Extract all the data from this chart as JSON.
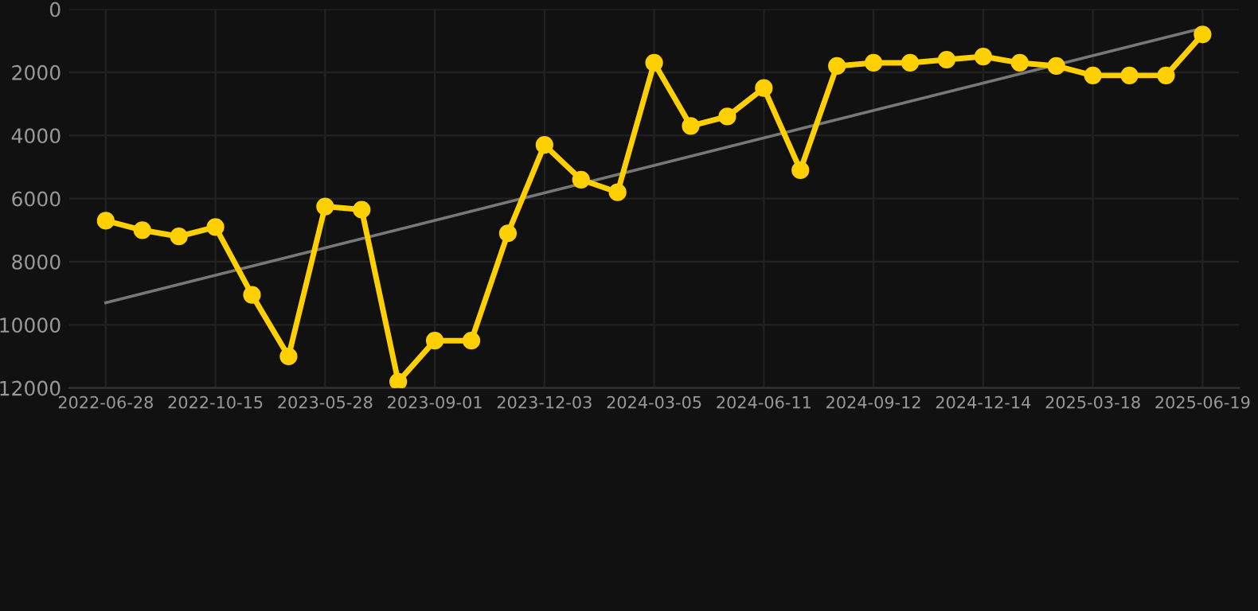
{
  "chart_data": {
    "type": "line",
    "categories": [
      "2022-06-28",
      null,
      null,
      "2022-10-15",
      null,
      null,
      "2023-05-28",
      null,
      null,
      "2023-09-01",
      null,
      null,
      "2023-12-03",
      null,
      null,
      "2024-03-05",
      null,
      null,
      "2024-06-11",
      null,
      null,
      "2024-09-12",
      null,
      null,
      "2024-12-14",
      null,
      null,
      "2025-03-18",
      null,
      null,
      "2025-06-19"
    ],
    "series": [
      {
        "color": "#ffd000",
        "marker": "circle",
        "values": [
          6700,
          7000,
          7200,
          6900,
          9050,
          11000,
          6250,
          6350,
          11800,
          10500,
          10500,
          7100,
          4300,
          5400,
          5800,
          1700,
          3700,
          3400,
          2500,
          5100,
          1800,
          1700,
          1700,
          1600,
          1500,
          1700,
          1800,
          2100,
          2100,
          2100,
          800
        ]
      },
      {
        "color": "#777777",
        "marker": "none",
        "values": [
          9300,
          null,
          null,
          null,
          null,
          null,
          null,
          null,
          null,
          null,
          null,
          null,
          null,
          null,
          null,
          null,
          null,
          null,
          null,
          null,
          null,
          null,
          null,
          null,
          null,
          null,
          null,
          null,
          null,
          null,
          600
        ]
      }
    ],
    "ylim": [
      12000,
      0
    ],
    "yticks": [
      0,
      2000,
      4000,
      6000,
      8000,
      10000,
      12000
    ],
    "grid": true,
    "line_style": "solid"
  }
}
